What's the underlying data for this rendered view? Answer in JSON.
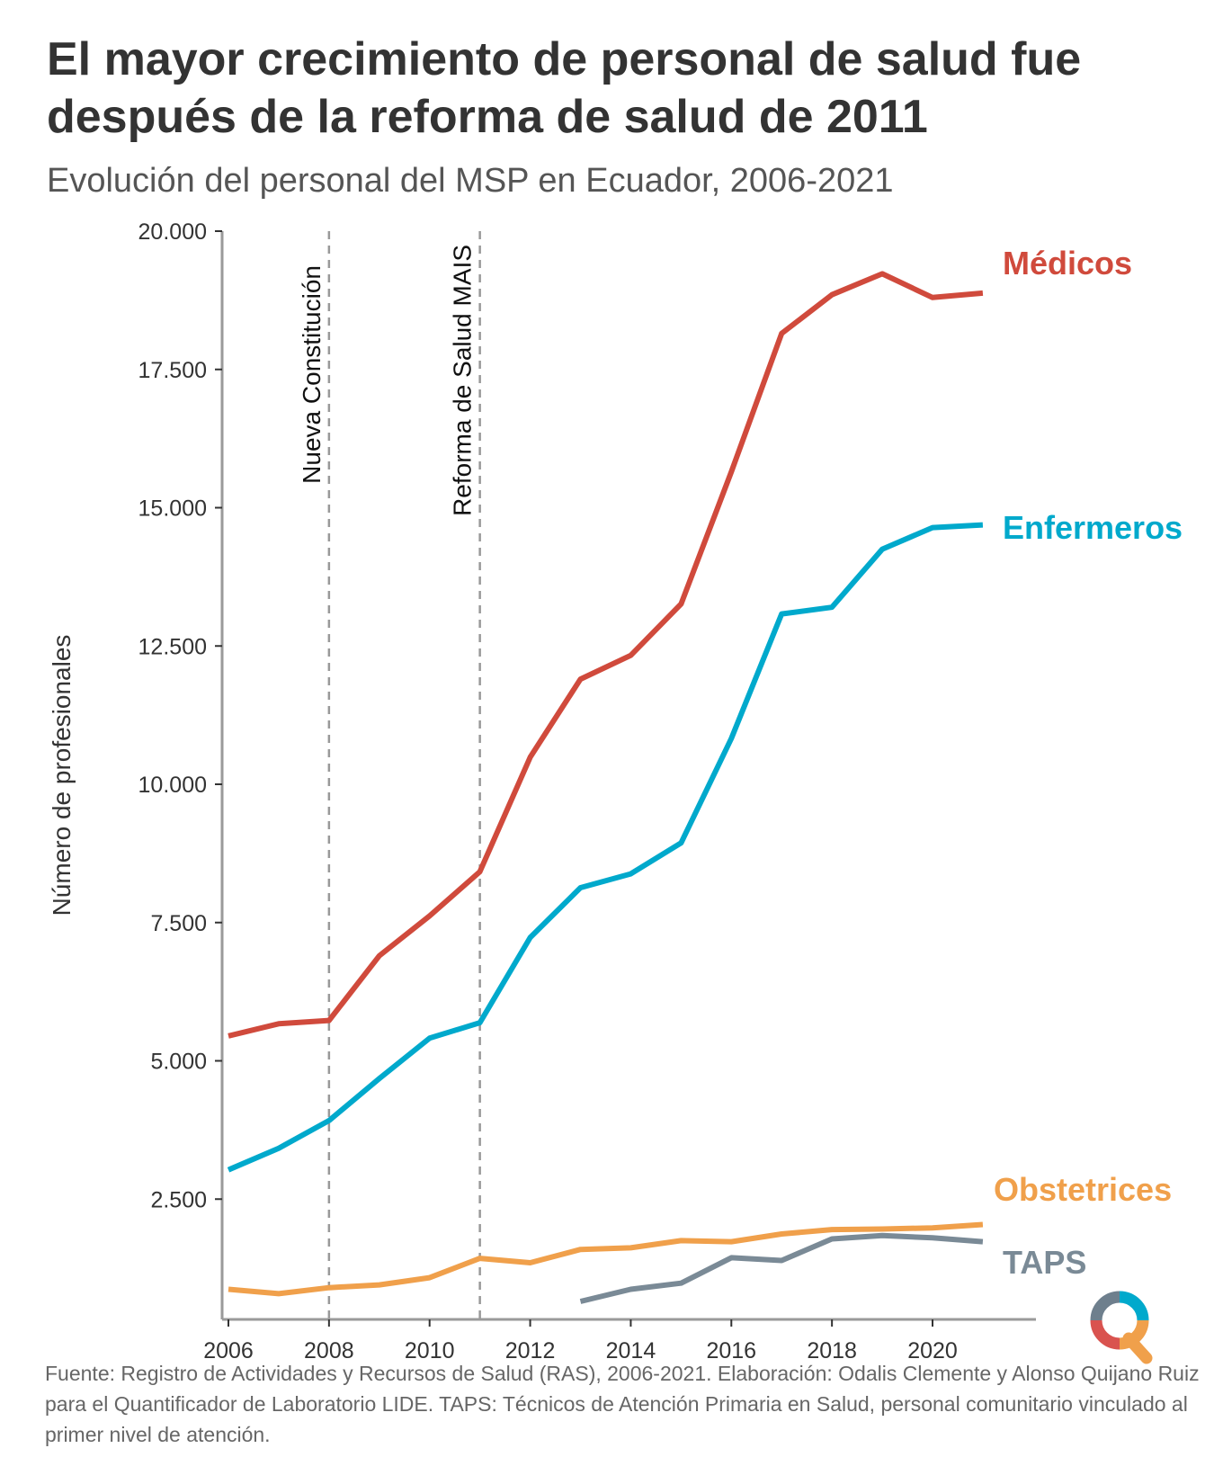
{
  "title": "El mayor crecimiento de personal de salud fue después de la reforma de salud de 2011",
  "subtitle": "Evolución del personal del MSP en Ecuador, 2006-2021",
  "source": "Fuente: Registro de Actividades y Recursos de Salud (RAS), 2006-2021. Elaboración: Odalis Clemente y Alonso Quijano Ruiz para el Quantificador de Laboratorio LIDE. TAPS: Técnicos de Atención Primaria en Salud, personal comunitario vinculado al primer nivel de atención.",
  "logo": {
    "icon": "quantificador-logo-icon",
    "colors": [
      "#6e7f8d",
      "#00a9cc",
      "#d9534f",
      "#f0a04b"
    ]
  },
  "chart_data": {
    "type": "line",
    "title": "El mayor crecimiento de personal de salud fue después de la reforma de salud de 2011",
    "subtitle": "Evolución del personal del MSP en Ecuador, 2006-2021",
    "xlabel": "",
    "ylabel": "Número de profesionales",
    "xlim": [
      2006,
      2022
    ],
    "ylim": [
      0,
      20000
    ],
    "x_ticks": [
      2006,
      2008,
      2010,
      2012,
      2014,
      2016,
      2018,
      2020
    ],
    "x_tick_labels": [
      "2006",
      "2008",
      "2010",
      "2012",
      "2014",
      "2016",
      "2018",
      "2020"
    ],
    "y_ticks": [
      2500,
      5000,
      7500,
      10000,
      12500,
      15000,
      17500,
      20000
    ],
    "y_tick_labels": [
      "2.500",
      "5.000",
      "7.500",
      "10.000",
      "12.500",
      "15.000",
      "17.500",
      "20.000"
    ],
    "grid": false,
    "legend": "direct labels at line ends (right)",
    "annotations": [
      {
        "x": 2008,
        "label": "Nueva Constitución",
        "style": "dashed vertical line"
      },
      {
        "x": 2011,
        "label": "Reforma de Salud MAIS",
        "style": "dashed vertical line"
      }
    ],
    "series": [
      {
        "name": "Médicos",
        "color": "#d04a3c",
        "x": [
          2006,
          2007,
          2008,
          2009,
          2010,
          2011,
          2012,
          2013,
          2014,
          2015,
          2016,
          2017,
          2018,
          2019,
          2020,
          2021
        ],
        "values": [
          5450,
          5670,
          5730,
          6900,
          7620,
          8420,
          10490,
          11900,
          12330,
          13260,
          15650,
          18150,
          18850,
          19230,
          18800,
          18880
        ]
      },
      {
        "name": "Enfermeros",
        "color": "#00a9cc",
        "x": [
          2006,
          2007,
          2008,
          2009,
          2010,
          2011,
          2012,
          2013,
          2014,
          2015,
          2016,
          2017,
          2018,
          2019,
          2020,
          2021
        ],
        "values": [
          3030,
          3420,
          3920,
          4680,
          5410,
          5690,
          7230,
          8130,
          8380,
          8940,
          10830,
          13080,
          13200,
          14250,
          14640,
          14690
        ]
      },
      {
        "name": "Obstetrices",
        "color": "#f0a04b",
        "x": [
          2006,
          2007,
          2008,
          2009,
          2010,
          2011,
          2012,
          2013,
          2014,
          2015,
          2016,
          2017,
          2018,
          2019,
          2020,
          2021
        ],
        "values": [
          870,
          790,
          900,
          950,
          1080,
          1430,
          1350,
          1590,
          1620,
          1750,
          1730,
          1870,
          1950,
          1960,
          1980,
          2040
        ]
      },
      {
        "name": "TAPS",
        "color": "#7a8a96",
        "x": [
          2013,
          2014,
          2015,
          2016,
          2017,
          2018,
          2019,
          2020,
          2021
        ],
        "values": [
          650,
          870,
          980,
          1440,
          1390,
          1780,
          1840,
          1800,
          1730
        ]
      }
    ]
  }
}
